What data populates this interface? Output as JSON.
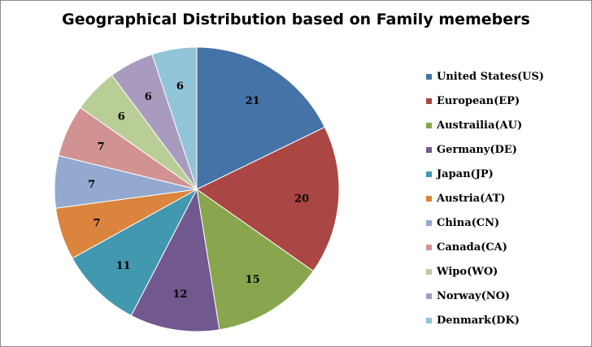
{
  "chart_data": {
    "type": "pie",
    "title": "Geographical Distribution based on Family memebers",
    "categories": [
      "United States(US)",
      "European(EP)",
      "Austrailia(AU)",
      "Germany(DE)",
      "Japan(JP)",
      "Austria(AT)",
      "China(CN)",
      "Canada(CA)",
      "Wipo(WO)",
      "Norway(NO)",
      "Denmark(DK)"
    ],
    "values": [
      21,
      20,
      15,
      12,
      11,
      7,
      7,
      7,
      6,
      6,
      6
    ],
    "colors": [
      "#4573A7",
      "#AA4643",
      "#89A54E",
      "#71588F",
      "#4298AF",
      "#DB843D",
      "#93A9CF",
      "#D19392",
      "#B9CD96",
      "#A99BBD",
      "#92C5D7"
    ],
    "data_labels": [
      "21",
      "20",
      "15",
      "12",
      "11",
      "7",
      "7",
      "7",
      "6",
      "6",
      "6"
    ],
    "legend_position": "right"
  }
}
